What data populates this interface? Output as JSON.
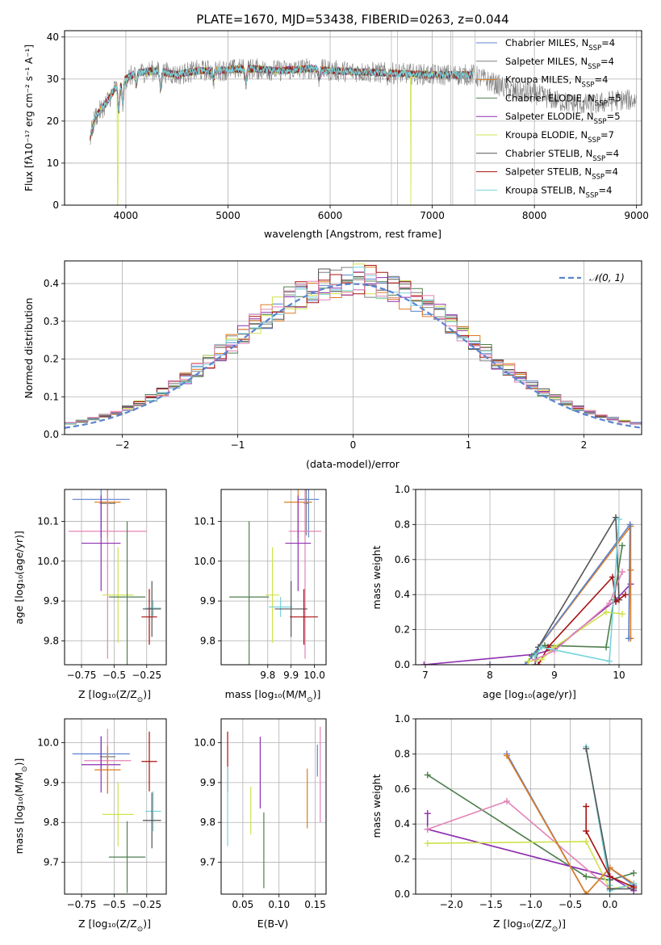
{
  "figure": {
    "title": "PLATE=1670, MJD=53438, FIBERID=0263, z=0.044",
    "colors": {
      "Chabrier MILES": "#5b83d0",
      "Salpeter MILES": "#808080",
      "Kroupa MILES": "#e07b1f",
      "Chabrier ELODIE": "#4f7f4f",
      "Salpeter ELODIE": "#8e2fb0",
      "Kroupa ELODIE": "#cfe24c",
      "Chabrier STELIB": "#555555",
      "Salpeter STELIB": "#a81010",
      "Kroupa STELIB": "#76d4dc",
      "extra": "#e284b6"
    }
  },
  "chart_data": [
    {
      "id": "spectrum",
      "type": "line",
      "xlabel": "wavelength [Angstrom, rest frame]",
      "ylabel": "Flux [fλ10⁻¹⁷ erg cm⁻² s⁻¹ A⁻¹]",
      "xlim": [
        3400,
        9050
      ],
      "ylim": [
        0,
        41.5
      ],
      "xticks": [
        4000,
        5000,
        6000,
        7000,
        8000,
        9000
      ],
      "yticks": [
        0,
        10,
        20,
        30,
        40
      ],
      "legend_position": "upper-right",
      "legend": [
        {
          "base": "Chabrier MILES, N",
          "sub": "SSP",
          "tail": "=4"
        },
        {
          "base": "Salpeter MILES, N",
          "sub": "SSP",
          "tail": "=4"
        },
        {
          "base": "Kroupa MILES, N",
          "sub": "SSP",
          "tail": "=4"
        },
        {
          "base": "Chabrier ELODIE, N",
          "sub": "SSP",
          "tail": "=5"
        },
        {
          "base": "Salpeter ELODIE, N",
          "sub": "SSP",
          "tail": "=5"
        },
        {
          "base": "Kroupa ELODIE, N",
          "sub": "SSP",
          "tail": "=7"
        },
        {
          "base": "Chabrier STELIB, N",
          "sub": "SSP",
          "tail": "=4"
        },
        {
          "base": "Salpeter STELIB, N",
          "sub": "SSP",
          "tail": "=4"
        },
        {
          "base": "Kroupa STELIB, N",
          "sub": "SSP",
          "tail": "=4"
        }
      ],
      "continuum": [
        [
          3650,
          16
        ],
        [
          3700,
          21
        ],
        [
          3800,
          24
        ],
        [
          3900,
          28
        ],
        [
          4000,
          30
        ],
        [
          4100,
          31.5
        ],
        [
          4300,
          32
        ],
        [
          4500,
          31
        ],
        [
          4700,
          32
        ],
        [
          4900,
          32
        ],
        [
          5200,
          32.5
        ],
        [
          5500,
          32
        ],
        [
          5800,
          32.5
        ],
        [
          6000,
          32
        ],
        [
          6500,
          31.5
        ],
        [
          7000,
          31
        ],
        [
          7400,
          31
        ],
        [
          7600,
          29
        ],
        [
          7800,
          27
        ],
        [
          8000,
          26.5
        ],
        [
          8200,
          25
        ],
        [
          8400,
          24
        ],
        [
          8600,
          24
        ],
        [
          8800,
          25
        ],
        [
          9000,
          25
        ]
      ],
      "features": [
        [
          3930,
          -6
        ],
        [
          3970,
          -5
        ],
        [
          4101,
          -3
        ],
        [
          4340,
          -4
        ],
        [
          4860,
          -2
        ],
        [
          5175,
          -3
        ],
        [
          5890,
          -2
        ],
        [
          6563,
          -1
        ]
      ],
      "dips": [
        [
          3920,
          0,
          "Kroupa ELODIE"
        ],
        [
          6790,
          0,
          "Kroupa ELODIE"
        ],
        [
          7420,
          0,
          "Kroupa MILES"
        ]
      ],
      "spikes": [
        6600,
        6660,
        7180,
        7200,
        7420
      ]
    },
    {
      "id": "residuals",
      "type": "histogram",
      "xlabel": "(data-model)/error",
      "ylabel": "Normed distribution",
      "xlim": [
        -2.5,
        2.5
      ],
      "ylim": [
        0,
        0.46
      ],
      "xticks": [
        -2,
        -1,
        0,
        1,
        2
      ],
      "yticks": [
        0.0,
        0.1,
        0.2,
        0.3,
        0.4
      ],
      "bin_width": 0.1,
      "gaussian": {
        "label": "𝒩(0, 1)",
        "mu": 0,
        "sigma": 1
      },
      "legend_position": "upper-right"
    },
    {
      "id": "age-vs-Z",
      "type": "scatter",
      "xlabel_base": "Z [log₁₀(Z/Z",
      "xlabel_sub": "⊙",
      "xlabel_tail": ")]",
      "ylabel": "age  [log₁₀(age/yr)]",
      "xlim": [
        -0.88,
        -0.1
      ],
      "ylim": [
        9.74,
        10.18
      ],
      "xticks": [
        -0.75,
        -0.5,
        -0.25
      ],
      "yticks": [
        9.8,
        9.9,
        10.0,
        10.1
      ],
      "points": [
        {
          "model": "Chabrier MILES",
          "x": -0.6,
          "y": 10.155,
          "xerr": 0.22,
          "yerr": 0.095
        },
        {
          "model": "Kroupa MILES",
          "x": -0.55,
          "y": 10.148,
          "xerr": 0.1,
          "yerr": 0.09
        },
        {
          "model": "Salpeter MILES",
          "x": -0.55,
          "y": 10.145,
          "xerr": 0.06,
          "yerr": 0.08
        },
        {
          "model": "extra",
          "x": -0.55,
          "y": 10.075,
          "xerr": 0.3,
          "yerr": 0.32
        },
        {
          "model": "Salpeter ELODIE",
          "x": -0.6,
          "y": 10.045,
          "xerr": 0.15,
          "yerr": 0.12
        },
        {
          "model": "Kroupa ELODIE",
          "x": -0.47,
          "y": 9.915,
          "xerr": 0.12,
          "yerr": 0.12
        },
        {
          "model": "Chabrier ELODIE",
          "x": -0.4,
          "y": 9.91,
          "xerr": 0.14,
          "yerr": 0.19
        },
        {
          "model": "Kroupa STELIB",
          "x": -0.2,
          "y": 9.882,
          "xerr": 0.06,
          "yerr": 0.02
        },
        {
          "model": "Chabrier STELIB",
          "x": -0.21,
          "y": 9.88,
          "xerr": 0.07,
          "yerr": 0.07
        },
        {
          "model": "Salpeter STELIB",
          "x": -0.23,
          "y": 9.86,
          "xerr": 0.06,
          "yerr": 0.07
        }
      ]
    },
    {
      "id": "age-vs-mass",
      "type": "scatter",
      "xlabel_base": "mass [log₁₀(M/M",
      "xlabel_sub": "⊙",
      "xlabel_tail": ")]",
      "xlim": [
        9.6,
        10.05
      ],
      "ylim": [
        9.74,
        10.18
      ],
      "xticks": [
        9.8,
        9.9,
        10.0
      ],
      "yticks": [
        9.8,
        9.9,
        10.0,
        10.1
      ],
      "points": [
        {
          "model": "Chabrier MILES",
          "x": 9.975,
          "y": 10.155,
          "xerr": 0.045,
          "yerr": 0.095
        },
        {
          "model": "Kroupa MILES",
          "x": 9.93,
          "y": 10.148,
          "xerr": 0.06,
          "yerr": 0.09
        },
        {
          "model": "Salpeter MILES",
          "x": 9.965,
          "y": 10.145,
          "xerr": 0.01,
          "yerr": 0.08
        },
        {
          "model": "extra",
          "x": 9.96,
          "y": 10.075,
          "xerr": 0.07,
          "yerr": 0.32
        },
        {
          "model": "Salpeter ELODIE",
          "x": 9.93,
          "y": 10.045,
          "xerr": 0.055,
          "yerr": 0.12
        },
        {
          "model": "Kroupa ELODIE",
          "x": 9.82,
          "y": 9.915,
          "xerr": 0.03,
          "yerr": 0.12
        },
        {
          "model": "Chabrier ELODIE",
          "x": 9.72,
          "y": 9.91,
          "xerr": 0.085,
          "yerr": 0.19
        },
        {
          "model": "Kroupa STELIB",
          "x": 9.855,
          "y": 9.885,
          "xerr": 0.05,
          "yerr": 0.025
        },
        {
          "model": "Chabrier STELIB",
          "x": 9.9,
          "y": 9.88,
          "xerr": 0.07,
          "yerr": 0.07
        },
        {
          "model": "Salpeter STELIB",
          "x": 9.955,
          "y": 9.86,
          "xerr": 0.06,
          "yerr": 0.07
        }
      ]
    },
    {
      "id": "massweight-vs-age",
      "type": "line",
      "xlabel": "age  [log₁₀(age/yr)]",
      "ylabel": "mass weight",
      "xlim": [
        6.85,
        10.35
      ],
      "ylim": [
        0,
        1.0
      ],
      "xticks": [
        7,
        8,
        9,
        10
      ],
      "yticks": [
        0.0,
        0.2,
        0.4,
        0.6,
        0.8,
        1.0
      ],
      "series": [
        {
          "model": "Salpeter ELODIE",
          "x": [
            6.98,
            8.7,
            9.0,
            9.95,
            10.18
          ],
          "y": [
            0.0,
            0.06,
            0.09,
            0.37,
            0.46
          ]
        },
        {
          "model": "Kroupa MILES",
          "x": [
            8.0,
            8.55,
            10.18,
            10.18,
            10.18
          ],
          "y": [
            0.0,
            0.0,
            0.79,
            0.54,
            0.15
          ]
        },
        {
          "model": "Chabrier MILES",
          "x": [
            8.0,
            8.55,
            10.17,
            10.15
          ],
          "y": [
            0.0,
            0.0,
            0.8,
            0.15
          ]
        },
        {
          "model": "Chabrier STELIB",
          "x": [
            8.7,
            8.75,
            9.95,
            10.0
          ],
          "y": [
            0.0,
            0.1,
            0.84,
            0.37
          ]
        },
        {
          "model": "Chabrier ELODIE",
          "x": [
            8.65,
            8.85,
            9.8,
            9.92,
            10.05
          ],
          "y": [
            0.05,
            0.11,
            0.1,
            0.37,
            0.68
          ]
        },
        {
          "model": "Salpeter STELIB",
          "x": [
            8.75,
            8.9,
            9.9,
            9.95,
            10.1
          ],
          "y": [
            0.0,
            0.1,
            0.5,
            0.36,
            0.4
          ]
        },
        {
          "model": "Kroupa ELODIE",
          "x": [
            8.6,
            8.8,
            9.0,
            9.8,
            10.05
          ],
          "y": [
            0.02,
            0.03,
            0.1,
            0.3,
            0.29
          ]
        },
        {
          "model": "extra",
          "x": [
            8.7,
            9.0,
            9.85,
            10.05
          ],
          "y": [
            0.03,
            0.08,
            0.35,
            0.53
          ]
        },
        {
          "model": "Kroupa STELIB",
          "x": [
            8.7,
            8.8,
            9.85,
            10.0
          ],
          "y": [
            0.05,
            0.1,
            0.02,
            0.83
          ]
        }
      ]
    },
    {
      "id": "mass-vs-Z",
      "type": "scatter",
      "xlabel_base": "Z [log₁₀(Z/Z",
      "xlabel_sub": "⊙",
      "xlabel_tail": ")]",
      "ylabel_base": "mass [log₁₀(M/M",
      "ylabel_sub": "⊙",
      "ylabel_tail": ")]",
      "xlim": [
        -0.88,
        -0.1
      ],
      "ylim": [
        9.62,
        10.06
      ],
      "xticks": [
        -0.75,
        -0.5,
        -0.25
      ],
      "yticks": [
        9.7,
        9.8,
        9.9,
        10.0
      ],
      "points": [
        {
          "model": "Chabrier MILES",
          "x": -0.6,
          "y": 9.972,
          "xerr": 0.22,
          "yerr": 0.045
        },
        {
          "model": "Salpeter MILES",
          "x": -0.55,
          "y": 9.965,
          "xerr": 0.06,
          "yerr": 0.01
        },
        {
          "model": "extra",
          "x": -0.55,
          "y": 9.955,
          "xerr": 0.18,
          "yerr": 0.08
        },
        {
          "model": "Salpeter ELODIE",
          "x": -0.6,
          "y": 9.945,
          "xerr": 0.15,
          "yerr": 0.07
        },
        {
          "model": "Kroupa MILES",
          "x": -0.55,
          "y": 9.932,
          "xerr": 0.1,
          "yerr": 0.06
        },
        {
          "model": "Salpeter STELIB",
          "x": -0.23,
          "y": 9.953,
          "xerr": 0.06,
          "yerr": 0.075
        },
        {
          "model": "Kroupa ELODIE",
          "x": -0.47,
          "y": 9.82,
          "xerr": 0.12,
          "yerr": 0.08
        },
        {
          "model": "Kroupa STELIB",
          "x": -0.2,
          "y": 9.828,
          "xerr": 0.06,
          "yerr": 0.05
        },
        {
          "model": "Chabrier STELIB",
          "x": -0.21,
          "y": 9.805,
          "xerr": 0.07,
          "yerr": 0.07
        },
        {
          "model": "Chabrier ELODIE",
          "x": -0.4,
          "y": 9.713,
          "xerr": 0.14,
          "yerr": 0.09
        }
      ]
    },
    {
      "id": "mass-vs-EBV",
      "type": "scatter",
      "xlabel": "E(B-V)",
      "xlim": [
        0.02,
        0.165
      ],
      "ylim": [
        9.62,
        10.06
      ],
      "xticks": [
        0.05,
        0.1,
        0.15
      ],
      "yticks": [
        9.7,
        9.8,
        9.9,
        10.0
      ],
      "points": [
        {
          "model": "Salpeter STELIB",
          "x": 0.029,
          "y": 9.953,
          "xerr": 0,
          "yerr": 0.075
        },
        {
          "model": "Kroupa STELIB",
          "x": 0.029,
          "y": 9.84,
          "xerr": 0,
          "yerr": 0.1
        },
        {
          "model": "Salpeter ELODIE",
          "x": 0.074,
          "y": 9.925,
          "xerr": 0,
          "yerr": 0.09
        },
        {
          "model": "Kroupa ELODIE",
          "x": 0.061,
          "y": 9.83,
          "xerr": 0,
          "yerr": 0.06
        },
        {
          "model": "Chabrier ELODIE",
          "x": 0.079,
          "y": 9.73,
          "xerr": 0,
          "yerr": 0.095
        },
        {
          "model": "Kroupa MILES",
          "x": 0.139,
          "y": 9.86,
          "xerr": 0,
          "yerr": 0.075
        },
        {
          "model": "Chabrier MILES",
          "x": 0.153,
          "y": 9.955,
          "xerr": 0,
          "yerr": 0.04
        },
        {
          "model": "extra",
          "x": 0.157,
          "y": 9.92,
          "xerr": 0,
          "yerr": 0.12
        }
      ]
    },
    {
      "id": "massweight-vs-Z",
      "type": "line",
      "xlabel_base": "Z [log₁₀(Z/Z",
      "xlabel_sub": "⊙",
      "xlabel_tail": ")]",
      "ylabel": "mass weight",
      "xlim": [
        -2.45,
        0.4
      ],
      "ylim": [
        0,
        1.0
      ],
      "xticks": [
        -2.0,
        -1.5,
        -1.0,
        -0.5,
        0.0
      ],
      "yticks": [
        0.0,
        0.2,
        0.4,
        0.6,
        0.8,
        1.0
      ],
      "series": [
        {
          "model": "Chabrier ELODIE",
          "x": [
            -2.3,
            -0.3,
            0.0,
            0.3
          ],
          "y": [
            0.68,
            0.1,
            0.08,
            0.12
          ]
        },
        {
          "model": "Salpeter ELODIE",
          "x": [
            -2.3,
            -2.3,
            0.0,
            0.3
          ],
          "y": [
            0.46,
            0.37,
            0.1,
            0.02
          ]
        },
        {
          "model": "extra",
          "x": [
            -2.3,
            -1.3,
            0.0,
            0.3
          ],
          "y": [
            0.37,
            0.53,
            0.03,
            0.05
          ]
        },
        {
          "model": "Kroupa ELODIE",
          "x": [
            -2.3,
            -0.3,
            0.0,
            0.3
          ],
          "y": [
            0.29,
            0.3,
            0.03,
            0.05
          ]
        },
        {
          "model": "Chabrier MILES",
          "x": [
            -1.3,
            -0.3,
            0.0,
            0.3
          ],
          "y": [
            0.8,
            0.0,
            0.15,
            0.05
          ]
        },
        {
          "model": "Kroupa MILES",
          "x": [
            -1.3,
            -0.3,
            0.0,
            0.3
          ],
          "y": [
            0.79,
            0.0,
            0.15,
            0.06
          ]
        },
        {
          "model": "Kroupa STELIB",
          "x": [
            -0.3,
            0.0,
            0.0,
            0.3
          ],
          "y": [
            0.84,
            0.05,
            0.02,
            0.06
          ]
        },
        {
          "model": "Chabrier STELIB",
          "x": [
            -0.3,
            0.0,
            0.0,
            0.3
          ],
          "y": [
            0.83,
            0.1,
            0.03,
            0.03
          ]
        },
        {
          "model": "Salpeter STELIB",
          "x": [
            -0.3,
            -0.3,
            0.0,
            0.3
          ],
          "y": [
            0.5,
            0.36,
            0.1,
            0.04
          ]
        }
      ]
    }
  ]
}
